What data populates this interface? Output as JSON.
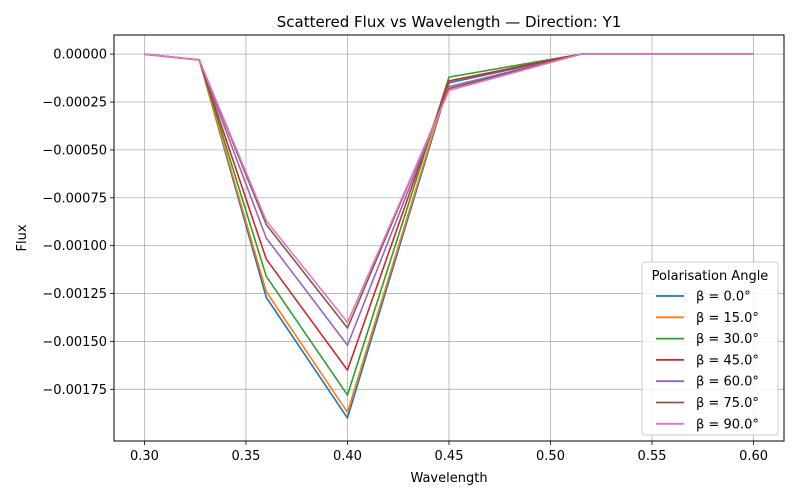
{
  "chart_data": {
    "type": "line",
    "title": "Scattered Flux vs Wavelength — Direction: Y1",
    "xlabel": "Wavelength",
    "ylabel": "Flux",
    "xlim": [
      0.285,
      0.615
    ],
    "ylim": [
      -0.00202,
      0.0001
    ],
    "xticks": [
      0.3,
      0.35,
      0.4,
      0.45,
      0.5,
      0.55,
      0.6
    ],
    "xtick_labels": [
      "0.30",
      "0.35",
      "0.40",
      "0.45",
      "0.50",
      "0.55",
      "0.60"
    ],
    "yticks": [
      0,
      -0.00025,
      -0.0005,
      -0.00075,
      -0.001,
      -0.00125,
      -0.0015,
      -0.00175
    ],
    "ytick_labels": [
      "0.00000",
      "−0.00025",
      "−0.00050",
      "−0.00075",
      "−0.00100",
      "−0.00125",
      "−0.00150",
      "−0.00175"
    ],
    "grid": true,
    "legend": {
      "title": "Polarisation Angle",
      "position": "lower-right"
    },
    "x": [
      0.3,
      0.327,
      0.36,
      0.4,
      0.45,
      0.515,
      0.6
    ],
    "series": [
      {
        "name": "β = 0.0°",
        "color": "#1f77b4",
        "values": [
          0,
          -3e-05,
          -0.00127,
          -0.0019,
          -0.00015,
          0,
          0
        ]
      },
      {
        "name": "β = 15.0°",
        "color": "#ff7f0e",
        "values": [
          0,
          -3e-05,
          -0.00124,
          -0.00187,
          -0.00014,
          0,
          0
        ]
      },
      {
        "name": "β = 30.0°",
        "color": "#2ca02c",
        "values": [
          0,
          -3e-05,
          -0.00116,
          -0.00178,
          -0.00012,
          0,
          0
        ]
      },
      {
        "name": "β = 45.0°",
        "color": "#d62728",
        "values": [
          0,
          -3e-05,
          -0.00107,
          -0.00165,
          -0.00014,
          0,
          0
        ]
      },
      {
        "name": "β = 60.0°",
        "color": "#9467bd",
        "values": [
          0,
          -3e-05,
          -0.00096,
          -0.00152,
          -0.00017,
          0,
          0
        ]
      },
      {
        "name": "β = 75.0°",
        "color": "#8c564b",
        "values": [
          0,
          -3e-05,
          -0.00089,
          -0.00143,
          -0.00018,
          0,
          0
        ]
      },
      {
        "name": "β = 90.0°",
        "color": "#e377c2",
        "values": [
          0,
          -3e-05,
          -0.00087,
          -0.0014,
          -0.00019,
          0,
          0
        ]
      }
    ]
  }
}
